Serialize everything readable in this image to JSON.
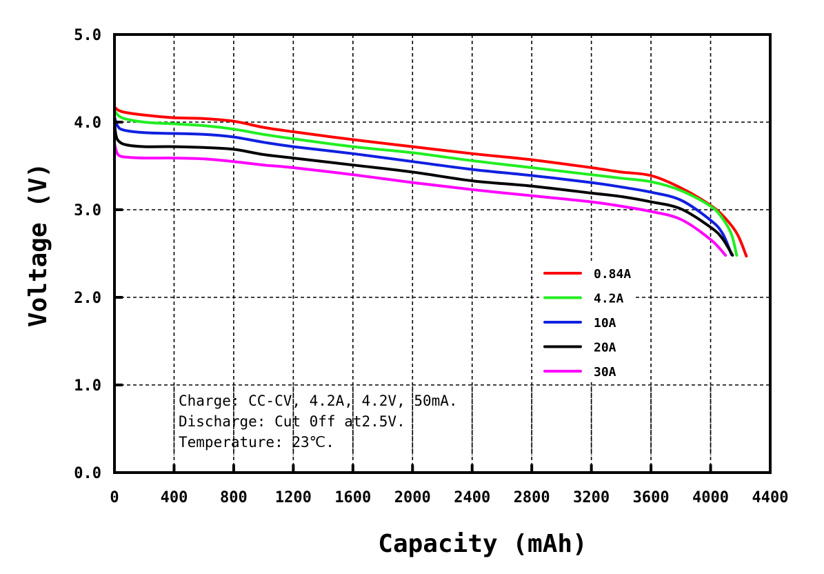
{
  "chart_data": {
    "type": "line",
    "title": "",
    "xlabel": "Capacity (mAh)",
    "ylabel": "Voltage (V)",
    "xlim": [
      0,
      4400
    ],
    "ylim": [
      0,
      5.0
    ],
    "xticks": [
      0,
      400,
      800,
      1200,
      1600,
      2000,
      2400,
      2800,
      3200,
      3600,
      4000,
      4400
    ],
    "xtick_labels": [
      "0",
      "400",
      "800",
      "1200",
      "1600",
      "2000",
      "2400",
      "2800",
      "3200",
      "3600",
      "4000",
      "4400"
    ],
    "yticks": [
      0,
      1,
      2,
      3,
      4,
      5
    ],
    "ytick_labels": [
      "0.0",
      "1.0",
      "2.0",
      "3.0",
      "4.0",
      "5.0"
    ],
    "grid": true,
    "legend_position": "center-right",
    "series": [
      {
        "name": "0.84A",
        "color": "#ff0000",
        "x": [
          0,
          50,
          200,
          400,
          600,
          800,
          1000,
          1200,
          1600,
          2000,
          2400,
          2800,
          3200,
          3400,
          3600,
          3800,
          4000,
          4100,
          4180,
          4240
        ],
        "y": [
          4.17,
          4.12,
          4.08,
          4.05,
          4.04,
          4.01,
          3.94,
          3.89,
          3.8,
          3.72,
          3.64,
          3.57,
          3.48,
          3.43,
          3.39,
          3.25,
          3.05,
          2.9,
          2.72,
          2.47
        ]
      },
      {
        "name": "4.2A",
        "color": "#22ee22",
        "x": [
          0,
          50,
          200,
          400,
          600,
          800,
          1000,
          1200,
          1600,
          2000,
          2400,
          2800,
          3200,
          3400,
          3600,
          3800,
          4000,
          4080,
          4140,
          4175
        ],
        "y": [
          4.13,
          4.05,
          4.0,
          3.98,
          3.96,
          3.92,
          3.86,
          3.81,
          3.72,
          3.65,
          3.56,
          3.48,
          3.4,
          3.36,
          3.32,
          3.22,
          3.04,
          2.9,
          2.72,
          2.48
        ]
      },
      {
        "name": "10A",
        "color": "#1020e0",
        "x": [
          0,
          20,
          60,
          200,
          400,
          600,
          800,
          1000,
          1200,
          1600,
          2000,
          2400,
          2800,
          3200,
          3400,
          3600,
          3800,
          4000,
          4080,
          4140
        ],
        "y": [
          4.06,
          3.96,
          3.91,
          3.88,
          3.87,
          3.86,
          3.83,
          3.77,
          3.72,
          3.64,
          3.55,
          3.46,
          3.39,
          3.31,
          3.26,
          3.2,
          3.11,
          2.88,
          2.73,
          2.49
        ]
      },
      {
        "name": "20A",
        "color": "#000000",
        "x": [
          0,
          10,
          30,
          80,
          200,
          400,
          600,
          800,
          1000,
          1200,
          1600,
          2000,
          2400,
          2800,
          3200,
          3400,
          3600,
          3800,
          4000,
          4080,
          4147
        ],
        "y": [
          4.0,
          3.85,
          3.78,
          3.74,
          3.72,
          3.72,
          3.71,
          3.69,
          3.63,
          3.59,
          3.51,
          3.43,
          3.33,
          3.27,
          3.19,
          3.15,
          3.09,
          3.01,
          2.8,
          2.67,
          2.48
        ]
      },
      {
        "name": "30A",
        "color": "#ff00ff",
        "x": [
          0,
          10,
          30,
          80,
          200,
          400,
          600,
          800,
          1000,
          1200,
          1600,
          2000,
          2400,
          2800,
          3200,
          3400,
          3600,
          3800,
          4000,
          4100
        ],
        "y": [
          3.76,
          3.68,
          3.62,
          3.6,
          3.59,
          3.59,
          3.58,
          3.55,
          3.51,
          3.48,
          3.4,
          3.31,
          3.23,
          3.16,
          3.09,
          3.04,
          2.98,
          2.89,
          2.66,
          2.48
        ]
      }
    ],
    "annotations": [
      "Charge: CC-CV, 4.2A, 4.2V, 50mA.",
      "Discharge: Cut 0ff at2.5V.",
      "Temperature: 23℃."
    ]
  }
}
